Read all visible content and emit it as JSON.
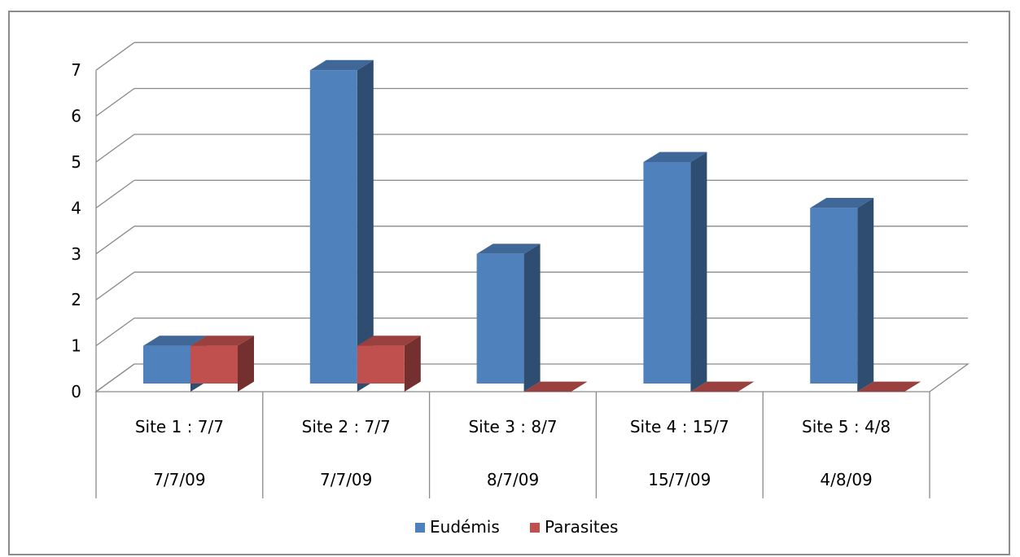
{
  "chart_data": {
    "type": "bar",
    "style": "3d-clustered-column",
    "categories": [
      "Site 1 : 7/7",
      "Site 2 : 7/7",
      "Site 3 : 8/7",
      "Site 4 : 15/7",
      "Site 5 : 4/8"
    ],
    "category_dates": [
      "7/7/09",
      "7/7/09",
      "8/7/09",
      "15/7/09",
      "4/8/09"
    ],
    "series": [
      {
        "name": "Eudémis",
        "values": [
          1,
          7,
          3,
          5,
          4
        ],
        "color": "#4f81bd"
      },
      {
        "name": "Parasites",
        "values": [
          1,
          1,
          0,
          0,
          0
        ],
        "color": "#c0504d"
      }
    ],
    "title": "",
    "xlabel": "",
    "ylabel": "",
    "ylim": [
      0,
      7
    ],
    "yticks": [
      0,
      1,
      2,
      3,
      4,
      5,
      6,
      7
    ],
    "grid": true,
    "legend": "bottom"
  }
}
